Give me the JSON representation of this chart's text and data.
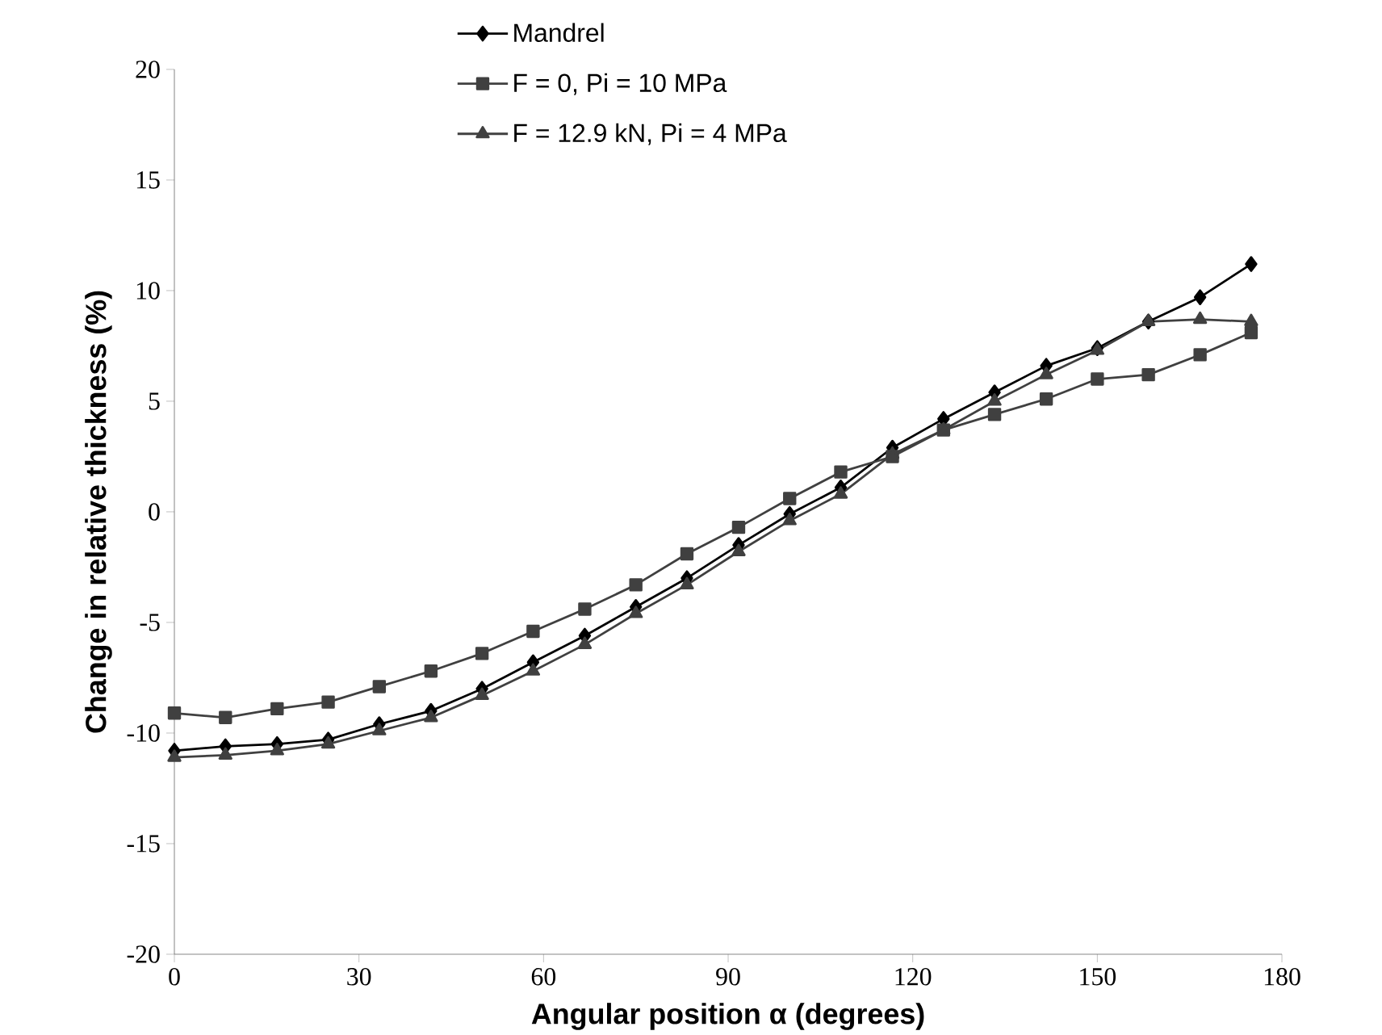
{
  "chart_data": {
    "type": "line",
    "xlabel": "Angular position α (degrees)",
    "ylabel": "Change in relative thickness (%)",
    "x": [
      0,
      8.3,
      16.7,
      25,
      33.3,
      41.7,
      50,
      58.3,
      66.7,
      75,
      83.3,
      91.7,
      100,
      108.3,
      116.7,
      125,
      133.3,
      141.7,
      150,
      158.3,
      166.7,
      175
    ],
    "series": [
      {
        "name": "Mandrel",
        "color": "#000000",
        "marker": "diamond",
        "values": [
          -10.8,
          -10.6,
          -10.5,
          -10.3,
          -9.6,
          -9.0,
          -8.0,
          -6.8,
          -5.6,
          -4.3,
          -3.0,
          -1.5,
          -0.1,
          1.1,
          2.9,
          4.2,
          5.4,
          6.6,
          7.4,
          8.6,
          9.7,
          11.2
        ]
      },
      {
        "name": "F = 0, Pi = 10 MPa",
        "color": "#404040",
        "marker": "square",
        "values": [
          -9.1,
          -9.3,
          -8.9,
          -8.6,
          -7.9,
          -7.2,
          -6.4,
          -5.4,
          -4.4,
          -3.3,
          -1.9,
          -0.7,
          0.6,
          1.8,
          2.5,
          3.7,
          4.4,
          5.1,
          6.0,
          6.2,
          7.1,
          8.1
        ]
      },
      {
        "name": "F = 12.9 kN, Pi = 4 MPa",
        "color": "#404040",
        "marker": "triangle",
        "values": [
          -11.1,
          -11.0,
          -10.8,
          -10.5,
          -9.9,
          -9.3,
          -8.3,
          -7.2,
          -6.0,
          -4.6,
          -3.3,
          -1.8,
          -0.4,
          0.8,
          2.6,
          3.7,
          5.0,
          6.2,
          7.3,
          8.6,
          8.7,
          8.6
        ]
      }
    ],
    "xlim": [
      0,
      180
    ],
    "xticks": [
      0,
      30,
      60,
      90,
      120,
      150,
      180
    ],
    "ylim": [
      -20,
      20
    ],
    "yticks": [
      -20,
      -15,
      -10,
      -5,
      0,
      5,
      10,
      15,
      20
    ],
    "legend": "top",
    "line_style": "solid"
  }
}
